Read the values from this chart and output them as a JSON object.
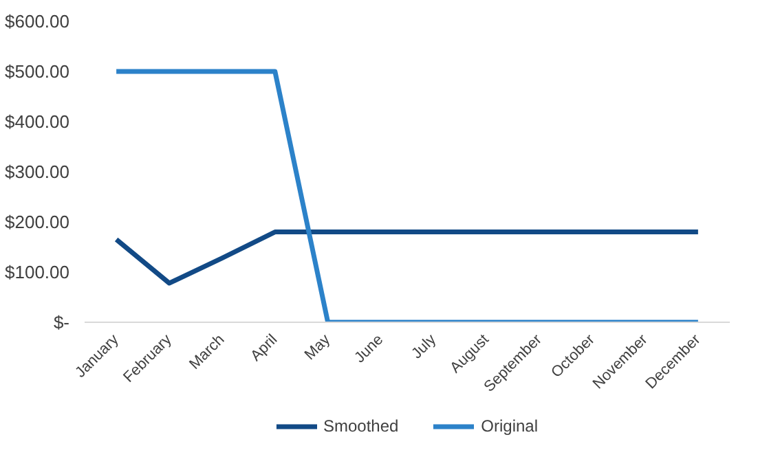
{
  "chart_data": {
    "type": "line",
    "categories": [
      "January",
      "February",
      "March",
      "April",
      "May",
      "June",
      "July",
      "August",
      "September",
      "October",
      "November",
      "December"
    ],
    "series": [
      {
        "name": "Smoothed",
        "color": "#124a86",
        "values": [
          165,
          78,
          128,
          180,
          180,
          180,
          180,
          180,
          180,
          180,
          180,
          180
        ]
      },
      {
        "name": "Original",
        "color": "#2c82c9",
        "values": [
          500,
          500,
          500,
          500,
          0,
          0,
          0,
          0,
          0,
          0,
          0,
          0
        ]
      }
    ],
    "ylim": [
      0,
      600
    ],
    "yticks": [
      {
        "value": 0,
        "label": "$-"
      },
      {
        "value": 100,
        "label": "$100.00"
      },
      {
        "value": 200,
        "label": "$200.00"
      },
      {
        "value": 300,
        "label": "$300.00"
      },
      {
        "value": 400,
        "label": "$400.00"
      },
      {
        "value": 500,
        "label": "$500.00"
      },
      {
        "value": 600,
        "label": "$600.00"
      }
    ],
    "grid": false,
    "legend": "bottom",
    "marker": "none",
    "line_style": "solid"
  }
}
